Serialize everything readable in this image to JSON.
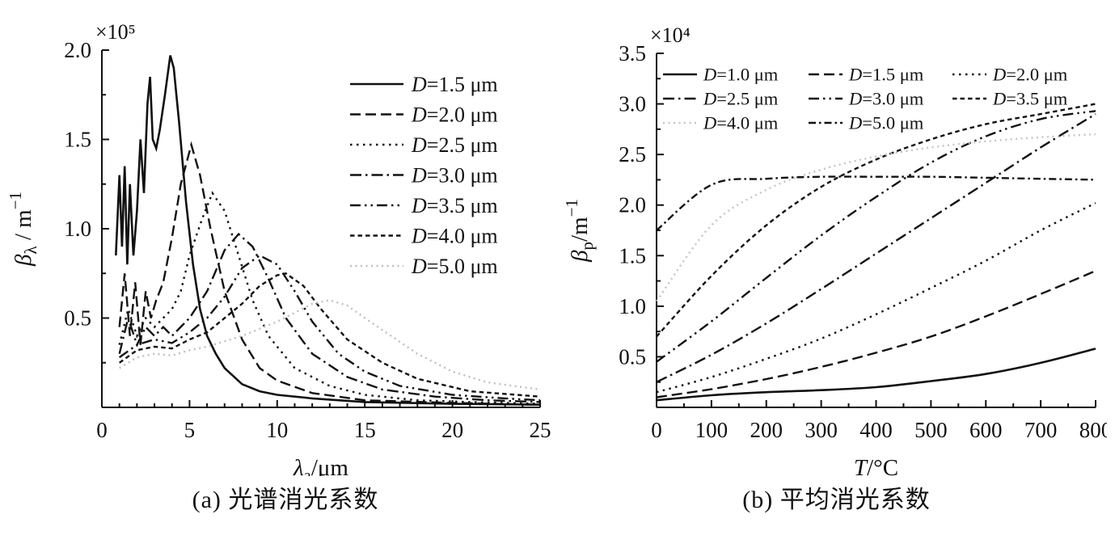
{
  "chart_data": [
    {
      "id": "a",
      "type": "line",
      "caption": "(a) 光谱消光系数",
      "offset_label": "×10⁵",
      "xlabel_parts": [
        {
          "t": "λ",
          "i": 1
        },
        {
          "t": "a",
          "p": "sub"
        },
        {
          "t": "/μm"
        }
      ],
      "ylabel_parts": [
        {
          "t": "β",
          "i": 1
        },
        {
          "t": "λ",
          "p": "sub"
        },
        {
          "t": " / m"
        },
        {
          "t": "−1",
          "p": "sup"
        }
      ],
      "x_range": [
        0,
        25
      ],
      "y_range": [
        0,
        2.0
      ],
      "x_ticks": {
        "values": [
          0,
          5,
          10,
          15,
          20,
          25
        ],
        "labels": [
          "0",
          "5",
          "10",
          "15",
          "20",
          "25"
        ],
        "minor_step": 1
      },
      "y_ticks": {
        "values": [
          0.5,
          1.0,
          1.5,
          2.0
        ],
        "labels": [
          "0.5",
          "1.0",
          "1.5",
          "2.0"
        ],
        "minor_step": 0.25
      },
      "series": [
        {
          "name": "D=1.5 μm",
          "style": "solid",
          "color": "#111111",
          "x": [
            0.8,
            1.0,
            1.15,
            1.3,
            1.45,
            1.6,
            1.8,
            2.0,
            2.2,
            2.4,
            2.6,
            2.75,
            2.9,
            3.1,
            3.3,
            3.6,
            3.9,
            4.1,
            4.4,
            4.8,
            5.2,
            5.6,
            6.0,
            6.5,
            7,
            8,
            9,
            10,
            12,
            15,
            20,
            25
          ],
          "values": [
            0.85,
            1.3,
            0.9,
            1.35,
            0.8,
            1.25,
            0.85,
            1.1,
            1.5,
            1.2,
            1.7,
            1.85,
            1.5,
            1.45,
            1.55,
            1.75,
            1.97,
            1.9,
            1.6,
            1.15,
            0.8,
            0.55,
            0.4,
            0.3,
            0.22,
            0.13,
            0.09,
            0.07,
            0.05,
            0.03,
            0.02,
            0.015
          ]
        },
        {
          "name": "D=2.0 μm",
          "style": "dash",
          "color": "#111111",
          "x": [
            1,
            1.3,
            1.6,
            1.9,
            2.2,
            2.5,
            2.8,
            3.1,
            3.5,
            4.0,
            4.5,
            5.1,
            5.6,
            6.2,
            7,
            8,
            9,
            10,
            12,
            15,
            20,
            25
          ],
          "values": [
            0.45,
            0.75,
            0.4,
            0.7,
            0.35,
            0.65,
            0.5,
            0.6,
            0.7,
            0.95,
            1.25,
            1.47,
            1.3,
            1.0,
            0.65,
            0.38,
            0.22,
            0.15,
            0.08,
            0.04,
            0.025,
            0.015
          ]
        },
        {
          "name": "D=2.5 μm",
          "style": "dot",
          "color": "#111111",
          "x": [
            1,
            1.5,
            2,
            2.5,
            3,
            3.5,
            4,
            4.5,
            5,
            5.7,
            6.3,
            7,
            7.8,
            8.6,
            9.5,
            11,
            13,
            15,
            18,
            21,
            25
          ],
          "values": [
            0.35,
            0.55,
            0.4,
            0.5,
            0.45,
            0.5,
            0.55,
            0.65,
            0.85,
            1.05,
            1.2,
            1.1,
            0.85,
            0.6,
            0.4,
            0.22,
            0.12,
            0.07,
            0.04,
            0.03,
            0.02
          ]
        },
        {
          "name": "D=3.0 μm",
          "style": "dashdot",
          "color": "#111111",
          "x": [
            1,
            1.5,
            2,
            2.5,
            3,
            3.5,
            4,
            5,
            6,
            7,
            7.8,
            8.6,
            9.5,
            10.5,
            12,
            14,
            16,
            19,
            22,
            25
          ],
          "values": [
            0.3,
            0.5,
            0.35,
            0.45,
            0.4,
            0.45,
            0.4,
            0.5,
            0.65,
            0.88,
            0.97,
            0.9,
            0.72,
            0.5,
            0.3,
            0.17,
            0.1,
            0.06,
            0.04,
            0.03
          ]
        },
        {
          "name": "D=3.5 μm",
          "style": "dashdotdot",
          "color": "#111111",
          "x": [
            1,
            2,
            3,
            4,
            5,
            6,
            7,
            8,
            9,
            10,
            11,
            12,
            13.5,
            15,
            17,
            20,
            23,
            25
          ],
          "values": [
            0.28,
            0.35,
            0.38,
            0.36,
            0.42,
            0.5,
            0.62,
            0.78,
            0.85,
            0.8,
            0.65,
            0.48,
            0.3,
            0.2,
            0.12,
            0.07,
            0.05,
            0.04
          ]
        },
        {
          "name": "D=4.0 μm",
          "style": "shortdash",
          "color": "#111111",
          "x": [
            1,
            2,
            3,
            4,
            5,
            6,
            7,
            8,
            9,
            10,
            10.5,
            11.5,
            12.5,
            14,
            16,
            18,
            21,
            25
          ],
          "values": [
            0.25,
            0.32,
            0.34,
            0.33,
            0.38,
            0.42,
            0.5,
            0.58,
            0.68,
            0.74,
            0.75,
            0.68,
            0.55,
            0.38,
            0.25,
            0.16,
            0.09,
            0.06
          ]
        },
        {
          "name": "D=5.0 μm",
          "style": "lightdot",
          "color": "#bfbfbf",
          "x": [
            1,
            2,
            3,
            4,
            5,
            6,
            7,
            8,
            9,
            10,
            11,
            12,
            13,
            14,
            15,
            16.5,
            18,
            20,
            22,
            25
          ],
          "values": [
            0.22,
            0.28,
            0.3,
            0.29,
            0.32,
            0.34,
            0.37,
            0.4,
            0.44,
            0.48,
            0.53,
            0.58,
            0.6,
            0.57,
            0.5,
            0.4,
            0.3,
            0.2,
            0.14,
            0.1
          ]
        }
      ]
    },
    {
      "id": "b",
      "type": "line",
      "caption": "(b) 平均消光系数",
      "offset_label": "×10⁴",
      "xlabel_parts": [
        {
          "t": "T",
          "i": 1
        },
        {
          "t": "/°C"
        }
      ],
      "ylabel_parts": [
        {
          "t": "β",
          "i": 1
        },
        {
          "t": "p",
          "p": "sub"
        },
        {
          "t": "/m"
        },
        {
          "t": "−1",
          "p": "sup"
        }
      ],
      "x_range": [
        0,
        800
      ],
      "y_range": [
        0,
        3.5
      ],
      "x_ticks": {
        "values": [
          0,
          100,
          200,
          300,
          400,
          500,
          600,
          700,
          800
        ],
        "labels": [
          "0",
          "100",
          "200",
          "300",
          "400",
          "500",
          "600",
          "700",
          "800"
        ],
        "minor_step": 50
      },
      "y_ticks": {
        "values": [
          0.5,
          1.0,
          1.5,
          2.0,
          2.5,
          3.0,
          3.5
        ],
        "labels": [
          "0.5",
          "1.0",
          "1.5",
          "2.0",
          "2.5",
          "3.0",
          "3.5"
        ],
        "minor_step": 0.25
      },
      "x": [
        0,
        100,
        200,
        300,
        400,
        500,
        600,
        700,
        800
      ],
      "series": [
        {
          "name": "D=1.0 μm",
          "style": "solid",
          "color": "#111111",
          "values": [
            0.07,
            0.12,
            0.15,
            0.17,
            0.2,
            0.26,
            0.33,
            0.44,
            0.58
          ]
        },
        {
          "name": "D=1.5 μm",
          "style": "dash",
          "color": "#111111",
          "values": [
            0.1,
            0.18,
            0.28,
            0.4,
            0.54,
            0.7,
            0.9,
            1.12,
            1.35
          ]
        },
        {
          "name": "D=2.0 μm",
          "style": "dot",
          "color": "#111111",
          "values": [
            0.15,
            0.3,
            0.48,
            0.68,
            0.92,
            1.18,
            1.45,
            1.75,
            2.02
          ]
        },
        {
          "name": "D=2.5 μm",
          "style": "dashdot",
          "color": "#111111",
          "values": [
            0.25,
            0.52,
            0.83,
            1.17,
            1.52,
            1.87,
            2.22,
            2.57,
            2.9
          ]
        },
        {
          "name": "D=3.0 μm",
          "style": "dashdotdot",
          "color": "#111111",
          "values": [
            0.45,
            0.85,
            1.28,
            1.7,
            2.08,
            2.42,
            2.68,
            2.85,
            2.93
          ]
        },
        {
          "name": "D=3.5 μm",
          "style": "shortdash",
          "color": "#111111",
          "values": [
            0.7,
            1.3,
            1.8,
            2.18,
            2.45,
            2.65,
            2.8,
            2.9,
            3.0
          ]
        },
        {
          "name": "D=4.0 μm",
          "style": "lightdot",
          "color": "#c4c4c4",
          "values": [
            1.05,
            1.8,
            2.15,
            2.35,
            2.48,
            2.57,
            2.63,
            2.67,
            2.7
          ]
        },
        {
          "name": "D=5.0 μm",
          "style": "widedashdot",
          "color": "#111111",
          "values": [
            1.75,
            2.2,
            2.26,
            2.28,
            2.28,
            2.28,
            2.27,
            2.26,
            2.25
          ]
        }
      ]
    }
  ]
}
